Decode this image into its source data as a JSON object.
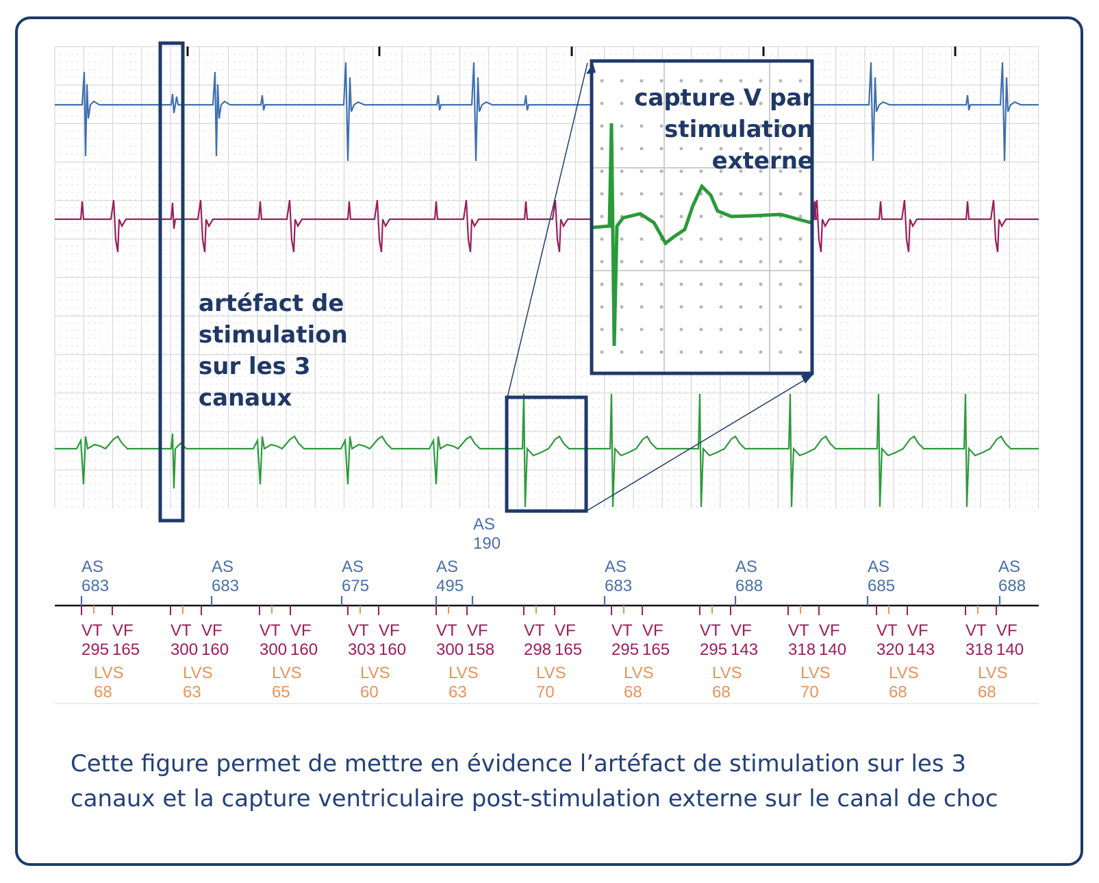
{
  "colors": {
    "frame": "#1e3a6a",
    "channel_atrial": "#3f6fb0",
    "channel_ventricular": "#9c1c5c",
    "channel_shock": "#2a9a3a",
    "marker_as": "#4a6ea8",
    "marker_vt_vf": "#9c1c5c",
    "marker_lvs": "#e8935a"
  },
  "annotations": {
    "artefact": "artéfact de stimulation sur les 3 canaux",
    "capture": "capture V par stimulation externe"
  },
  "markers": {
    "as_upper": {
      "label": "AS",
      "value": "190"
    },
    "as": [
      {
        "label": "AS",
        "value": "683"
      },
      {
        "label": "AS",
        "value": "683"
      },
      {
        "label": "AS",
        "value": "675"
      },
      {
        "label": "AS",
        "value": "495"
      },
      {
        "label": "AS",
        "value": "683"
      },
      {
        "label": "AS",
        "value": "688"
      },
      {
        "label": "AS",
        "value": "685"
      },
      {
        "label": "AS",
        "value": "688"
      }
    ],
    "beats": [
      {
        "vt": "VT",
        "vf": "VF",
        "vt_val": "295",
        "vf_val": "165",
        "lvs": "LVS",
        "lvs_val": "68"
      },
      {
        "vt": "VT",
        "vf": "VF",
        "vt_val": "300",
        "vf_val": "160",
        "lvs": "LVS",
        "lvs_val": "63"
      },
      {
        "vt": "VT",
        "vf": "VF",
        "vt_val": "300",
        "vf_val": "160",
        "lvs": "LVS",
        "lvs_val": "65"
      },
      {
        "vt": "VT",
        "vf": "VF",
        "vt_val": "303",
        "vf_val": "160",
        "lvs": "LVS",
        "lvs_val": "60"
      },
      {
        "vt": "VT",
        "vf": "VF",
        "vt_val": "300",
        "vf_val": "158",
        "lvs": "LVS",
        "lvs_val": "63"
      },
      {
        "vt": "VT",
        "vf": "VF",
        "vt_val": "298",
        "vf_val": "165",
        "lvs": "LVS",
        "lvs_val": "70"
      },
      {
        "vt": "VT",
        "vf": "VF",
        "vt_val": "295",
        "vf_val": "165",
        "lvs": "LVS",
        "lvs_val": "68"
      },
      {
        "vt": "VT",
        "vf": "VF",
        "vt_val": "295",
        "vf_val": "143",
        "lvs": "LVS",
        "lvs_val": "68"
      },
      {
        "vt": "VT",
        "vf": "VF",
        "vt_val": "318",
        "vf_val": "140",
        "lvs": "LVS",
        "lvs_val": "70"
      },
      {
        "vt": "VT",
        "vf": "VF",
        "vt_val": "320",
        "vf_val": "143",
        "lvs": "LVS",
        "lvs_val": "68"
      },
      {
        "vt": "VT",
        "vf": "VF",
        "vt_val": "318",
        "vf_val": "140",
        "lvs": "LVS",
        "lvs_val": "68"
      }
    ]
  },
  "caption": "Cette figure permet de mettre en évidence l’artéfact de stimulation sur les 3 canaux et la capture ventriculaire post-stimulation externe sur le canal de choc"
}
